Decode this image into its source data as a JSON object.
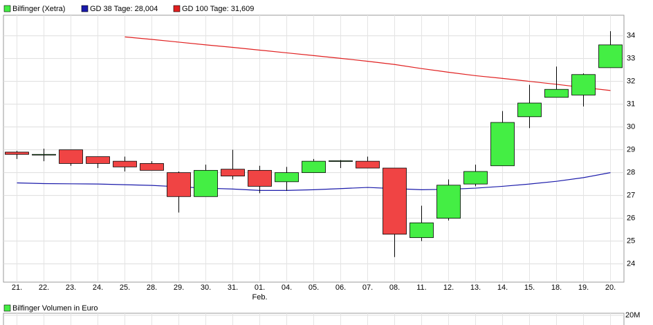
{
  "chart_data": {
    "type": "candlestick",
    "legend": [
      "Bilfinger (Xetra)",
      "GD 38 Tage: 28,004",
      "GD 100 Tage: 31,609"
    ],
    "categories": [
      "21.",
      "22.",
      "23.",
      "24.",
      "25.",
      "28.",
      "29.",
      "30.",
      "31.",
      "01.",
      "04.",
      "05.",
      "06.",
      "07.",
      "08.",
      "11.",
      "12.",
      "13.",
      "14.",
      "15.",
      "18.",
      "19.",
      "20."
    ],
    "month_label": "Feb.",
    "up_color": "#44ee44",
    "down_color": "#f04444",
    "open": [
      28.9,
      28.8,
      29.0,
      28.7,
      28.5,
      28.4,
      28.0,
      26.95,
      28.15,
      28.1,
      27.6,
      28.0,
      28.5,
      28.5,
      28.2,
      25.15,
      26.0,
      27.5,
      28.3,
      30.45,
      31.3,
      31.4,
      32.6
    ],
    "high": [
      28.95,
      29.05,
      29.0,
      28.7,
      28.7,
      28.5,
      28.05,
      28.35,
      29.0,
      28.3,
      28.25,
      28.6,
      28.55,
      28.7,
      28.2,
      26.55,
      27.7,
      28.35,
      30.7,
      31.85,
      32.65,
      32.35,
      34.2
    ],
    "low": [
      28.6,
      28.5,
      28.3,
      28.2,
      28.05,
      28.1,
      26.25,
      26.95,
      27.7,
      27.1,
      27.2,
      28.0,
      28.2,
      28.2,
      24.3,
      25.0,
      25.9,
      27.4,
      28.3,
      29.95,
      31.3,
      30.9,
      32.6
    ],
    "close": [
      28.8,
      28.8,
      28.4,
      28.4,
      28.25,
      28.1,
      26.95,
      28.1,
      27.85,
      27.4,
      28.0,
      28.5,
      28.52,
      28.2,
      25.3,
      25.8,
      27.45,
      28.05,
      30.2,
      31.05,
      31.65,
      32.3,
      33.6
    ],
    "series": [
      {
        "name": "GD 38 Tage: 28,004",
        "color": "#1a1aaa",
        "values": [
          27.55,
          27.52,
          27.51,
          27.5,
          27.47,
          27.44,
          27.38,
          27.32,
          27.28,
          27.22,
          27.22,
          27.25,
          27.3,
          27.35,
          27.3,
          27.25,
          27.27,
          27.32,
          27.4,
          27.5,
          27.62,
          27.78,
          28.0
        ]
      },
      {
        "name": "GD 100 Tage: 31,609",
        "color": "#e02020",
        "values": [
          null,
          null,
          null,
          null,
          33.95,
          33.84,
          33.72,
          33.6,
          33.49,
          33.37,
          33.25,
          33.13,
          33.01,
          32.88,
          32.74,
          32.56,
          32.4,
          32.25,
          32.13,
          32.0,
          31.87,
          31.73,
          31.6
        ]
      }
    ],
    "ylim": [
      23.2,
      34.9
    ],
    "yticks": [
      24,
      25,
      26,
      27,
      28,
      29,
      30,
      31,
      32,
      33,
      34
    ],
    "grid": true,
    "volume_panel": {
      "legend": "Bilfinger Volumen in Euro",
      "ylim": [
        0,
        20000000
      ],
      "yticks": [
        {
          "value": 20000000,
          "label": "20M"
        }
      ]
    }
  }
}
